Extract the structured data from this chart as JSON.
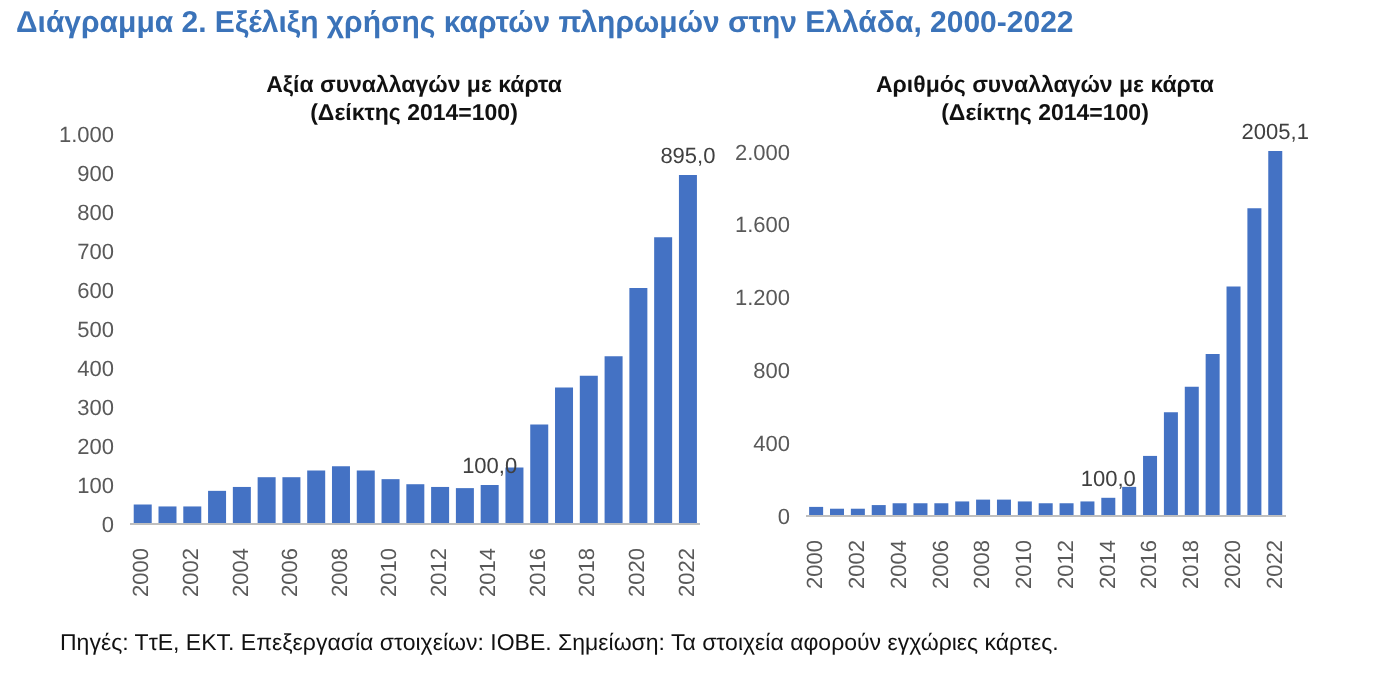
{
  "chart_data": [
    {
      "type": "bar",
      "title": "Αξία συναλλαγών με κάρτα",
      "subtitle": "(Δείκτης 2014=100)",
      "annotations": [
        "Διάγραμμα 2. Εξέλιξη χρήσης καρτών πληρωμών στην Ελλάδα, 2000-2022",
        "Πηγές: ΤτΕ, ΕΚΤ. Επεξεργασία στοιχείων: ΙΟΒΕ. Σημείωση: Τα στοιχεία αφορούν εγχώριες κάρτες."
      ],
      "categories": [
        "2000",
        null,
        "2002",
        null,
        "2004",
        null,
        "2006",
        null,
        "2008",
        null,
        "2010",
        null,
        "2012",
        null,
        "2014",
        null,
        "2016",
        null,
        "2018",
        null,
        "2020",
        null,
        "2022"
      ],
      "values": [
        50,
        45,
        45,
        85,
        95,
        120,
        120,
        137,
        148,
        137,
        115,
        102,
        95,
        92,
        100,
        145,
        255,
        350,
        380,
        430,
        605,
        735,
        895.0
      ],
      "value_labels": [
        null,
        null,
        null,
        null,
        null,
        null,
        null,
        null,
        null,
        null,
        null,
        null,
        null,
        null,
        "100,0",
        null,
        null,
        null,
        null,
        null,
        null,
        null,
        "895,0"
      ],
      "color": "#4472c4",
      "ylim": [
        0,
        1000
      ],
      "yticks": [
        0,
        100,
        200,
        300,
        400,
        500,
        600,
        700,
        800,
        900,
        {
          "value": 1000,
          "label": "1.000"
        }
      ],
      "grid": false,
      "legend": false
    },
    {
      "type": "bar",
      "title": "Αριθμός συναλλαγών με κάρτα",
      "subtitle": "(Δείκτης 2014=100)",
      "categories": [
        "2000",
        null,
        "2002",
        null,
        "2004",
        null,
        "2006",
        null,
        "2008",
        null,
        "2010",
        null,
        "2012",
        null,
        "2014",
        null,
        "2016",
        null,
        "2018",
        null,
        "2020",
        null,
        "2022"
      ],
      "values": [
        50,
        40,
        40,
        60,
        70,
        70,
        70,
        80,
        90,
        90,
        80,
        70,
        70,
        80,
        100,
        160,
        330,
        570,
        710,
        890,
        1260,
        1690,
        2005.1
      ],
      "value_labels": [
        null,
        null,
        null,
        null,
        null,
        null,
        null,
        null,
        null,
        null,
        null,
        null,
        null,
        null,
        "100,0",
        null,
        null,
        null,
        null,
        null,
        null,
        null,
        "2005,1"
      ],
      "color": "#4472c4",
      "ylim": [
        0,
        2010
      ],
      "yticks": [
        0,
        400,
        800,
        {
          "value": 1200,
          "label": "1.200"
        },
        {
          "value": 1600,
          "label": "1.600"
        },
        {
          "value": 2000,
          "label": "2.000"
        }
      ],
      "grid": false,
      "legend": false
    }
  ]
}
